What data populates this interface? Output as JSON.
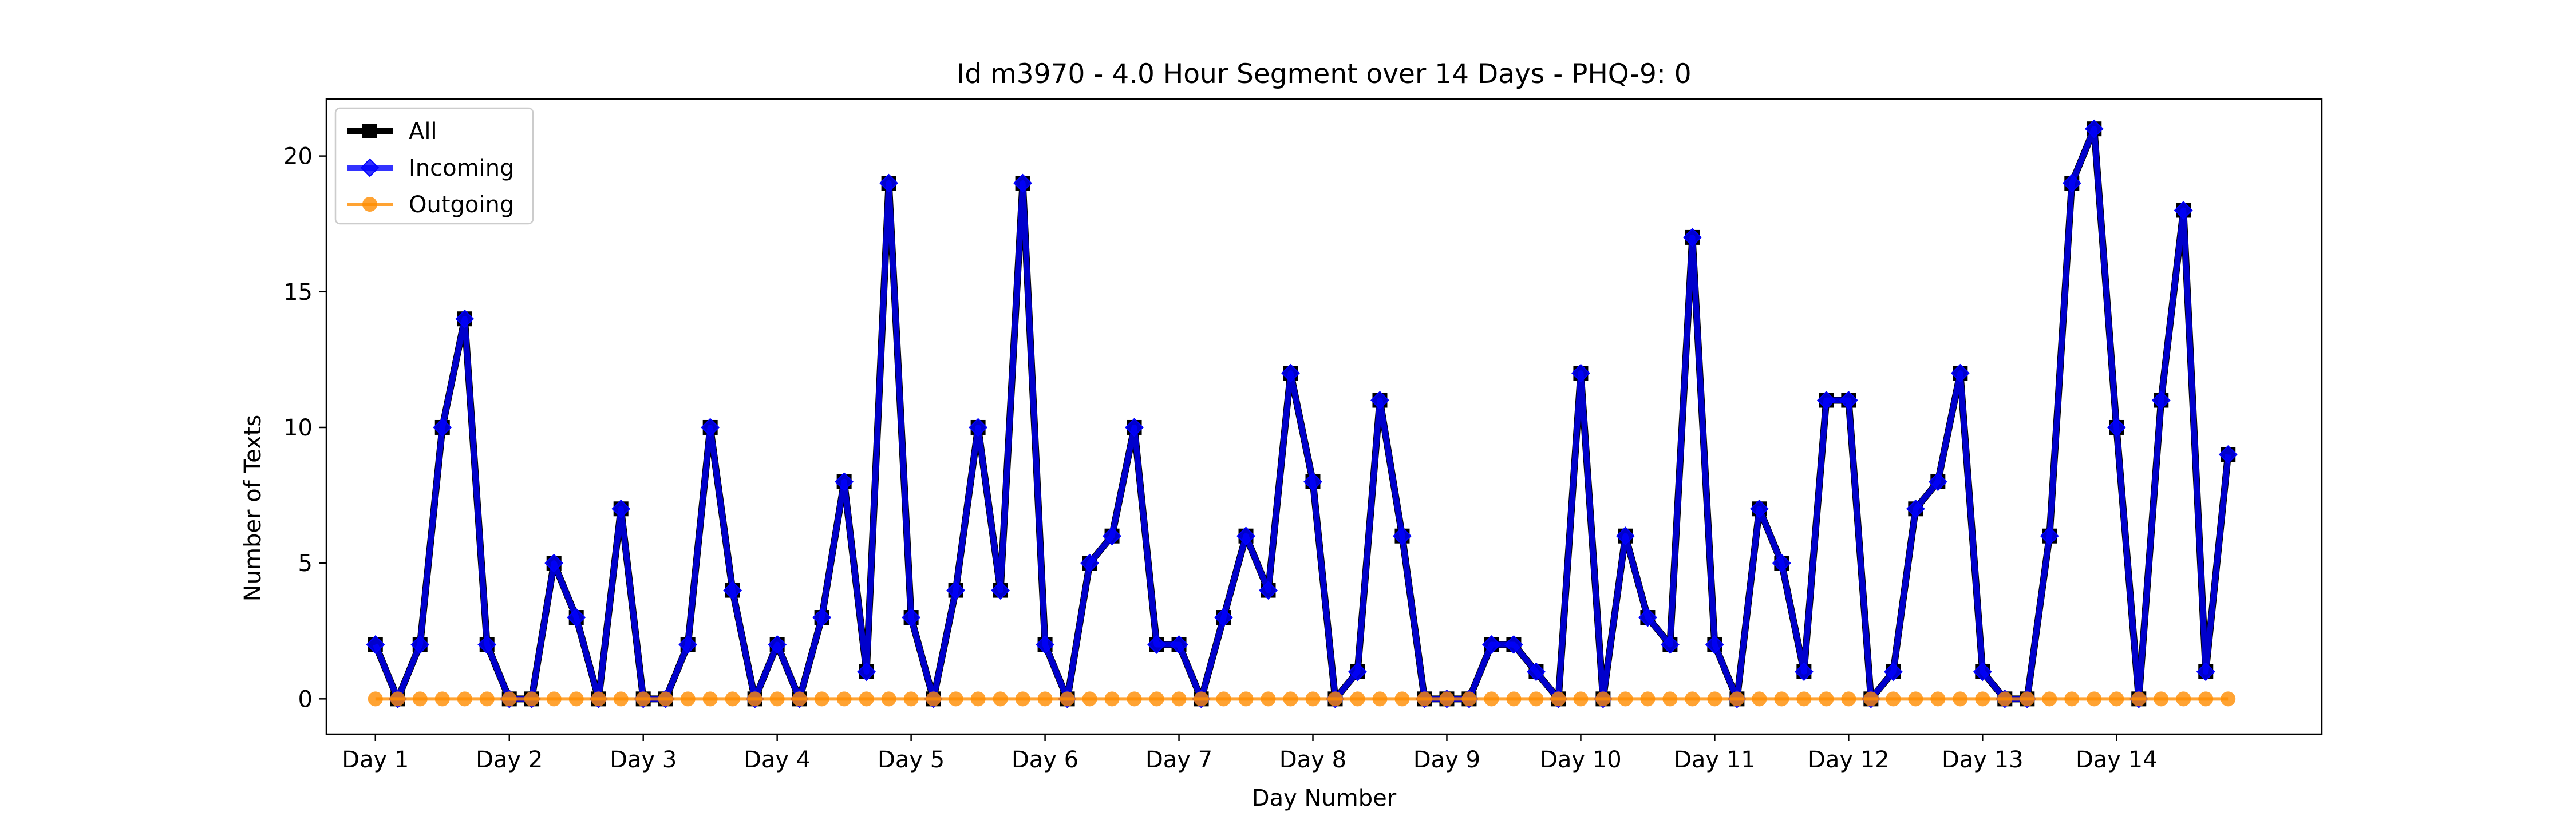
{
  "chart_data": {
    "type": "line",
    "title": "Id m3970 - 4.0 Hour Segment over 14 Days - PHQ-9: 0",
    "xlabel": "Day Number",
    "ylabel": "Number of Texts",
    "ylim": [
      -1.3,
      22.1
    ],
    "xlim": [
      -2.2,
      87.2
    ],
    "grid": false,
    "legend_position": "upper left",
    "y_ticks": [
      0,
      5,
      10,
      15,
      20
    ],
    "x_ticks": [
      {
        "x": 0,
        "label": "Day 1"
      },
      {
        "x": 6,
        "label": "Day 2"
      },
      {
        "x": 12,
        "label": "Day 3"
      },
      {
        "x": 18,
        "label": "Day 4"
      },
      {
        "x": 24,
        "label": "Day 5"
      },
      {
        "x": 30,
        "label": "Day 6"
      },
      {
        "x": 36,
        "label": "Day 7"
      },
      {
        "x": 42,
        "label": "Day 8"
      },
      {
        "x": 48,
        "label": "Day 9"
      },
      {
        "x": 54,
        "label": "Day 10"
      },
      {
        "x": 60,
        "label": "Day 11"
      },
      {
        "x": 66,
        "label": "Day 12"
      },
      {
        "x": 72,
        "label": "Day 13"
      },
      {
        "x": 78,
        "label": "Day 14"
      }
    ],
    "series": [
      {
        "name": "All",
        "color": "#000000",
        "marker": "square",
        "values": [
          2,
          0,
          2,
          10,
          14,
          2,
          0,
          0,
          5,
          3,
          0,
          7,
          0,
          0,
          2,
          10,
          4,
          0,
          2,
          0,
          3,
          8,
          1,
          19,
          3,
          0,
          4,
          10,
          4,
          19,
          2,
          0,
          5,
          6,
          10,
          2,
          2,
          0,
          3,
          6,
          4,
          12,
          8,
          0,
          1,
          11,
          6,
          0,
          0,
          0,
          2,
          2,
          1,
          0,
          12,
          0,
          6,
          3,
          2,
          17,
          2,
          0,
          7,
          5,
          1,
          11,
          11,
          0,
          1,
          7,
          8,
          12,
          1,
          0,
          0,
          6,
          19,
          21,
          10,
          0,
          11,
          18,
          1,
          9
        ]
      },
      {
        "name": "Incoming",
        "color": "#0000ff",
        "marker": "diamond",
        "values": [
          2,
          0,
          2,
          10,
          14,
          2,
          0,
          0,
          5,
          3,
          0,
          7,
          0,
          0,
          2,
          10,
          4,
          0,
          2,
          0,
          3,
          8,
          1,
          19,
          3,
          0,
          4,
          10,
          4,
          19,
          2,
          0,
          5,
          6,
          10,
          2,
          2,
          0,
          3,
          6,
          4,
          12,
          8,
          0,
          1,
          11,
          6,
          0,
          0,
          0,
          2,
          2,
          1,
          0,
          12,
          0,
          6,
          3,
          2,
          17,
          2,
          0,
          7,
          5,
          1,
          11,
          11,
          0,
          1,
          7,
          8,
          12,
          1,
          0,
          0,
          6,
          19,
          21,
          10,
          0,
          11,
          18,
          1,
          9
        ]
      },
      {
        "name": "Outgoing",
        "color": "#ff8c00",
        "marker": "circle",
        "values": [
          0,
          0,
          0,
          0,
          0,
          0,
          0,
          0,
          0,
          0,
          0,
          0,
          0,
          0,
          0,
          0,
          0,
          0,
          0,
          0,
          0,
          0,
          0,
          0,
          0,
          0,
          0,
          0,
          0,
          0,
          0,
          0,
          0,
          0,
          0,
          0,
          0,
          0,
          0,
          0,
          0,
          0,
          0,
          0,
          0,
          0,
          0,
          0,
          0,
          0,
          0,
          0,
          0,
          0,
          0,
          0,
          0,
          0,
          0,
          0,
          0,
          0,
          0,
          0,
          0,
          0,
          0,
          0,
          0,
          0,
          0,
          0,
          0,
          0,
          0,
          0,
          0,
          0,
          0,
          0,
          0,
          0,
          0,
          0
        ]
      }
    ]
  }
}
